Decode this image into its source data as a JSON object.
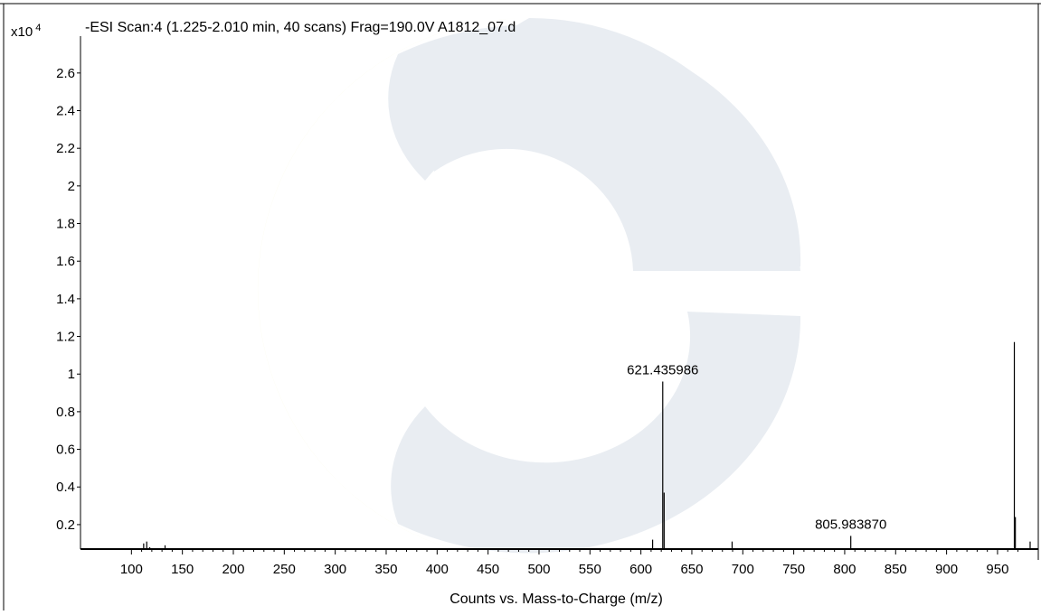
{
  "chart_data": {
    "type": "bar",
    "title": "-ESI Scan:4 (1.225-2.010 min, 40 scans) Frag=190.0V A1812_07.d",
    "xlabel": "Counts vs. Mass-to-Charge (m/z)",
    "ylabel": "",
    "y_multiplier": "x10",
    "y_multiplier_exp": "4",
    "xlim": [
      50,
      990
    ],
    "ylim": [
      0.07,
      2.7
    ],
    "x_ticks": [
      100,
      150,
      200,
      250,
      300,
      350,
      400,
      450,
      500,
      550,
      600,
      650,
      700,
      750,
      800,
      850,
      900,
      950
    ],
    "y_ticks": [
      0.2,
      0.4,
      0.6,
      0.8,
      1,
      1.2,
      1.4,
      1.6,
      1.8,
      2,
      2.2,
      2.4,
      2.6
    ],
    "y_tick_labels": [
      "0.2",
      "0.4",
      "0.6",
      "0.8",
      "1",
      "1.2",
      "1.4",
      "1.6",
      "1.8",
      "2",
      "2.2",
      "2.4",
      "2.6"
    ],
    "peaks": [
      {
        "mz": 112.0,
        "intensity": 0.1
      },
      {
        "mz": 115.0,
        "intensity": 0.11
      },
      {
        "mz": 118.0,
        "intensity": 0.08
      },
      {
        "mz": 133.0,
        "intensity": 0.09
      },
      {
        "mz": 611.5,
        "intensity": 0.12
      },
      {
        "mz": 621.435986,
        "intensity": 0.96,
        "label": "621.435986"
      },
      {
        "mz": 622.8,
        "intensity": 0.37
      },
      {
        "mz": 689.5,
        "intensity": 0.11
      },
      {
        "mz": 805.98387,
        "intensity": 0.14,
        "label": "805.983870"
      },
      {
        "mz": 966.5,
        "intensity": 1.17
      },
      {
        "mz": 967.5,
        "intensity": 0.24
      },
      {
        "mz": 982.0,
        "intensity": 0.11
      }
    ],
    "grid": false,
    "legend": "none"
  },
  "colors": {
    "axis": "#000000",
    "peak": "#000000",
    "watermark_gray": "#e9edf2",
    "watermark_yellow": "#fbfbe6"
  }
}
